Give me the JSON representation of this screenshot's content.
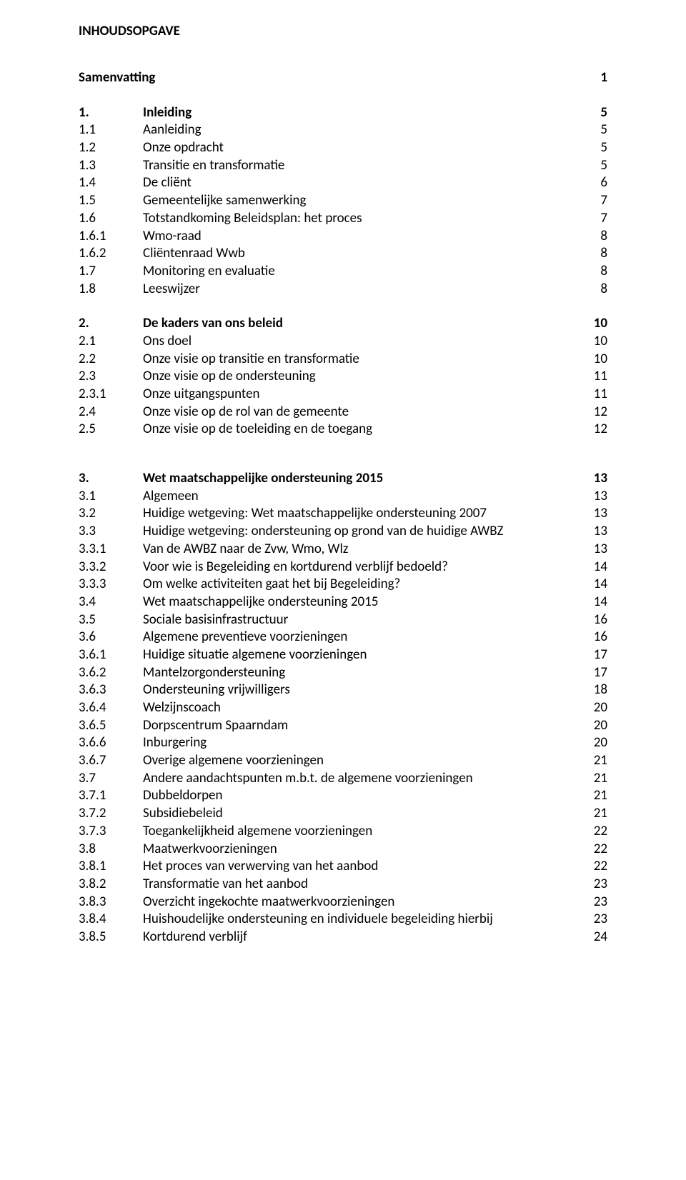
{
  "doc_title": "INHOUDSOPGAVE",
  "colors": {
    "text": "#000000",
    "background": "#ffffff"
  },
  "font": {
    "family": "Calibri",
    "size_pt": 14
  },
  "entries": [
    {
      "num": "",
      "title": "Samenvatting",
      "page": "1",
      "bold": true,
      "samenvatting": true
    },
    {
      "gap": "large"
    },
    {
      "num": "1.",
      "title": "Inleiding",
      "page": "5",
      "bold": true
    },
    {
      "num": "1.1",
      "title": "Aanleiding",
      "page": "5"
    },
    {
      "num": "1.2",
      "title": "Onze opdracht",
      "page": "5"
    },
    {
      "num": "1.3",
      "title": "Transitie en transformatie",
      "page": "5"
    },
    {
      "num": "1.4",
      "title": "De cliënt",
      "page": "6"
    },
    {
      "num": "1.5",
      "title": "Gemeentelijke samenwerking",
      "page": "7"
    },
    {
      "num": "1.6",
      "title": "Totstandkoming Beleidsplan: het proces",
      "page": "7"
    },
    {
      "num": "1.6.1",
      "title": "Wmo-raad",
      "page": "8"
    },
    {
      "num": "1.6.2",
      "title": "Cliëntenraad Wwb",
      "page": "8"
    },
    {
      "num": "1.7",
      "title": "Monitoring en evaluatie",
      "page": "8"
    },
    {
      "num": "1.8",
      "title": "Leeswijzer",
      "page": "8"
    },
    {
      "gap": "large"
    },
    {
      "num": "2.",
      "title": "De kaders van ons beleid",
      "page": "10",
      "bold": true
    },
    {
      "num": "2.1",
      "title": "Ons doel",
      "page": "10"
    },
    {
      "num": "2.2",
      "title": "Onze visie op transitie en transformatie",
      "page": "10"
    },
    {
      "num": "2.3",
      "title": "Onze visie op de ondersteuning",
      "page": "11"
    },
    {
      "num": "2.3.1",
      "title": "Onze uitgangspunten",
      "page": "11"
    },
    {
      "num": "2.4",
      "title": "Onze visie op de rol van de gemeente",
      "page": "12"
    },
    {
      "num": "2.5",
      "title": "Onze visie op de toeleiding en de toegang",
      "page": "12"
    },
    {
      "gap": "xlarge"
    },
    {
      "num": "3.",
      "title": "Wet maatschappelijke ondersteuning 2015",
      "page": "13",
      "bold": true
    },
    {
      "num": "3.1",
      "title": "Algemeen",
      "page": "13"
    },
    {
      "num": "3.2",
      "title": "Huidige wetgeving: Wet maatschappelijke ondersteuning 2007",
      "page": "13"
    },
    {
      "num": "3.3",
      "title": "Huidige wetgeving: ondersteuning op grond van de huidige AWBZ",
      "page": "13"
    },
    {
      "num": "3.3.1",
      "title": "Van de AWBZ naar de Zvw, Wmo, Wlz",
      "page": "13"
    },
    {
      "num": "3.3.2",
      "title": "Voor wie is Begeleiding en kortdurend verblijf bedoeld?",
      "page": "14"
    },
    {
      "num": "3.3.3",
      "title": "Om welke activiteiten gaat het bij Begeleiding?",
      "page": "14"
    },
    {
      "num": "3.4",
      "title": "Wet maatschappelijke ondersteuning 2015",
      "page": "14"
    },
    {
      "num": "3.5",
      "title": "Sociale basisinfrastructuur",
      "page": "16"
    },
    {
      "num": "3.6",
      "title": "Algemene preventieve voorzieningen",
      "page": "16"
    },
    {
      "num": "3.6.1",
      "title": "Huidige situatie algemene voorzieningen",
      "page": "17"
    },
    {
      "num": "3.6.2",
      "title": "Mantelzorgondersteuning",
      "page": "17"
    },
    {
      "num": "3.6.3",
      "title": "Ondersteuning vrijwilligers",
      "page": "18"
    },
    {
      "num": "3.6.4",
      "title": "Welzijnscoach",
      "page": "20"
    },
    {
      "num": "3.6.5",
      "title": "Dorpscentrum Spaarndam",
      "page": "20"
    },
    {
      "num": "3.6.6",
      "title": "Inburgering",
      "page": "20"
    },
    {
      "num": "3.6.7",
      "title": "Overige algemene voorzieningen",
      "page": "21"
    },
    {
      "num": "3.7",
      "title": "Andere aandachtspunten m.b.t. de algemene voorzieningen",
      "page": "21"
    },
    {
      "num": "3.7.1",
      "title": "Dubbeldorpen",
      "page": "21"
    },
    {
      "num": "3.7.2",
      "title": "Subsidiebeleid",
      "page": "21"
    },
    {
      "num": "3.7.3",
      "title": "Toegankelijkheid algemene voorzieningen",
      "page": "22"
    },
    {
      "num": "3.8",
      "title": "Maatwerkvoorzieningen",
      "page": "22"
    },
    {
      "num": "3.8.1",
      "title": "Het proces van verwerving van het aanbod",
      "page": "22"
    },
    {
      "num": "3.8.2",
      "title": "Transformatie van het aanbod",
      "page": "23"
    },
    {
      "num": "3.8.3",
      "title": "Overzicht ingekochte maatwerkvoorzieningen",
      "page": "23"
    },
    {
      "num": "3.8.4",
      "title": "Huishoudelijke ondersteuning en individuele begeleiding hierbij",
      "page": "23"
    },
    {
      "num": "3.8.5",
      "title": "Kortdurend verblijf",
      "page": "24"
    }
  ]
}
